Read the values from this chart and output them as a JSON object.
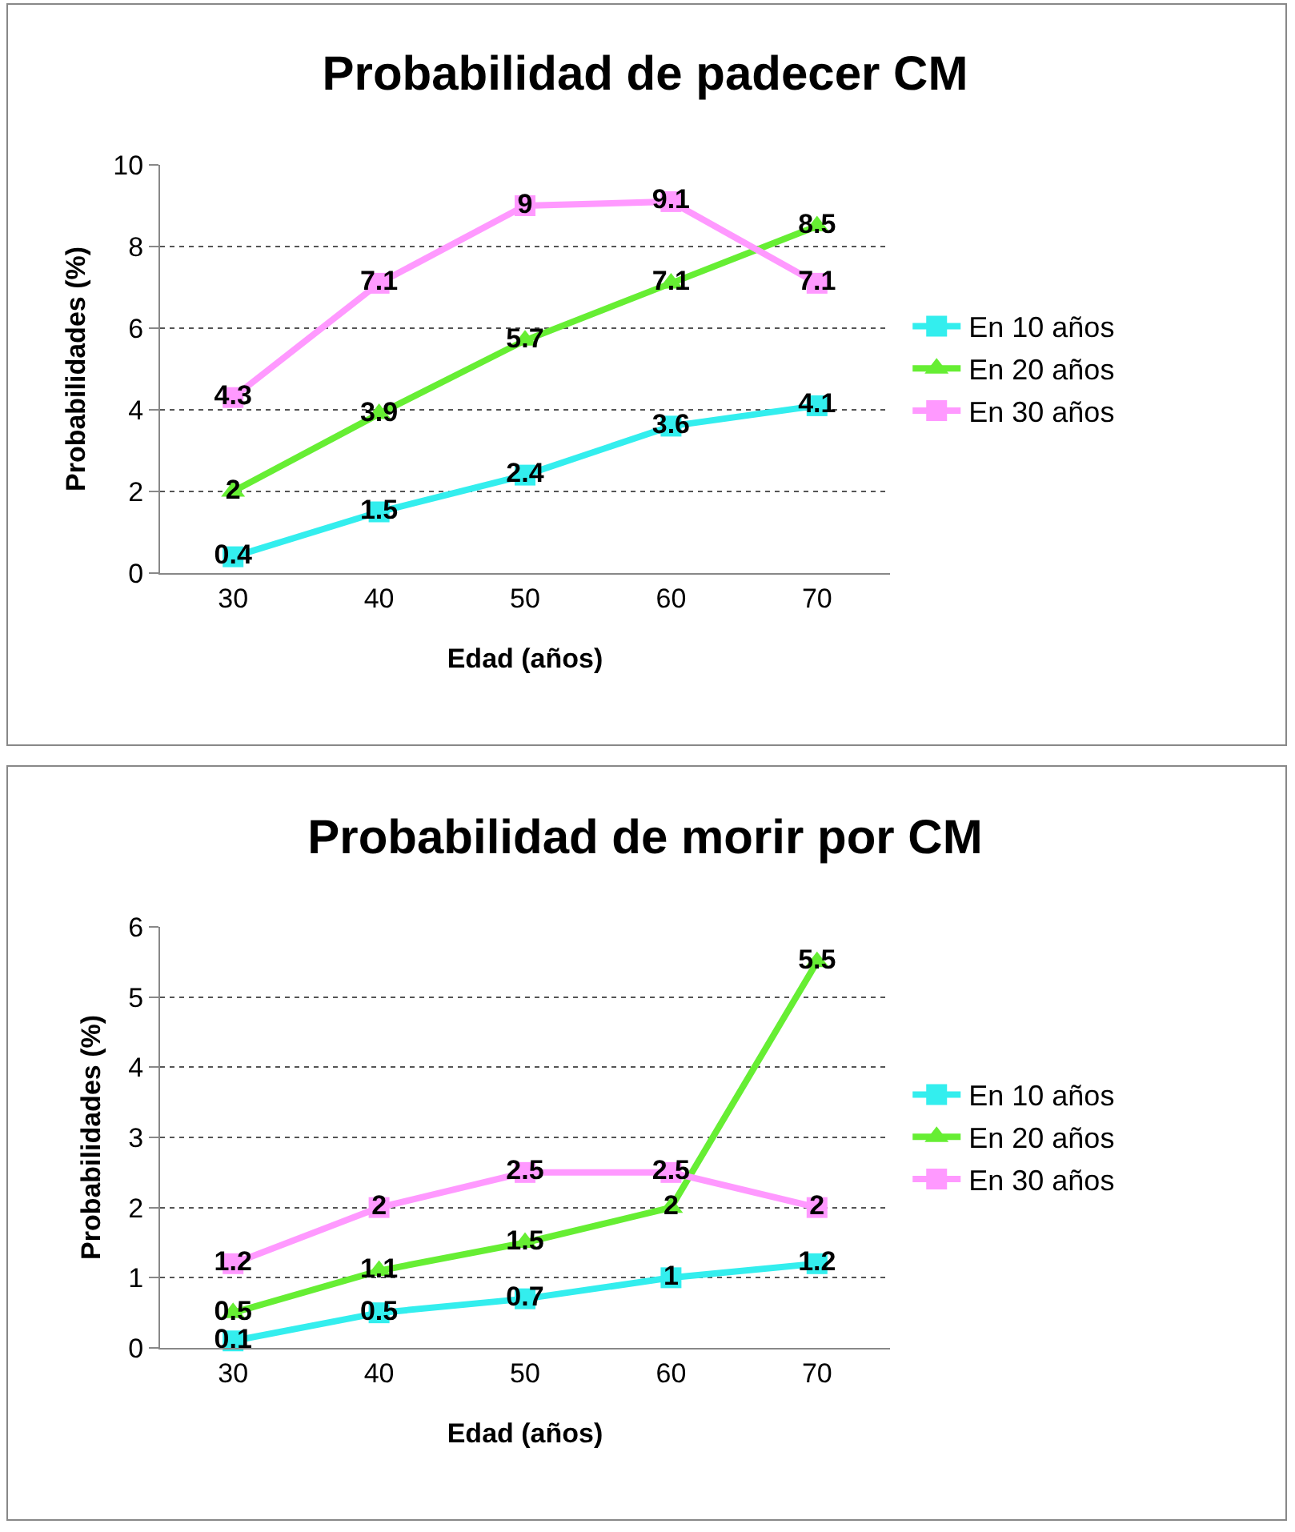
{
  "chart_data": [
    {
      "type": "line",
      "title": "Probabilidad de padecer CM",
      "xlabel": "Edad (años)",
      "ylabel": "Probabilidades (%)",
      "categories": [
        "30",
        "40",
        "50",
        "60",
        "70"
      ],
      "ylim": [
        0,
        10
      ],
      "yticks": [
        0,
        2,
        4,
        6,
        8,
        10
      ],
      "grid": "y",
      "legend": "right",
      "data_labels": true,
      "line_style": "solid",
      "series": [
        {
          "name": "En 10 años",
          "color": "#33eeee",
          "marker": "square",
          "values": [
            0.4,
            1.5,
            2.4,
            3.6,
            4.1
          ]
        },
        {
          "name": "En 20 años",
          "color": "#66ee33",
          "marker": "triangle",
          "values": [
            2,
            3.9,
            5.7,
            7.1,
            8.5
          ]
        },
        {
          "name": "En 30 años",
          "color": "#ff99ff",
          "marker": "square",
          "values": [
            4.3,
            7.1,
            9,
            9.1,
            7.1
          ]
        }
      ]
    },
    {
      "type": "line",
      "title": "Probabilidad de morir por CM",
      "xlabel": "Edad (años)",
      "ylabel": "Probabilidades (%)",
      "categories": [
        "30",
        "40",
        "50",
        "60",
        "70"
      ],
      "ylim": [
        0,
        6
      ],
      "yticks": [
        0,
        1,
        2,
        3,
        4,
        5,
        6
      ],
      "grid": "y",
      "legend": "right",
      "data_labels": true,
      "line_style": "solid",
      "series": [
        {
          "name": "En 10 años",
          "color": "#33eeee",
          "marker": "square",
          "values": [
            0.1,
            0.5,
            0.7,
            1,
            1.2
          ]
        },
        {
          "name": "En 20 años",
          "color": "#66ee33",
          "marker": "triangle",
          "values": [
            0.5,
            1.1,
            1.5,
            2,
            5.5
          ]
        },
        {
          "name": "En 30 años",
          "color": "#ff99ff",
          "marker": "square",
          "values": [
            1.2,
            2,
            2.5,
            2.5,
            2
          ]
        }
      ]
    }
  ]
}
